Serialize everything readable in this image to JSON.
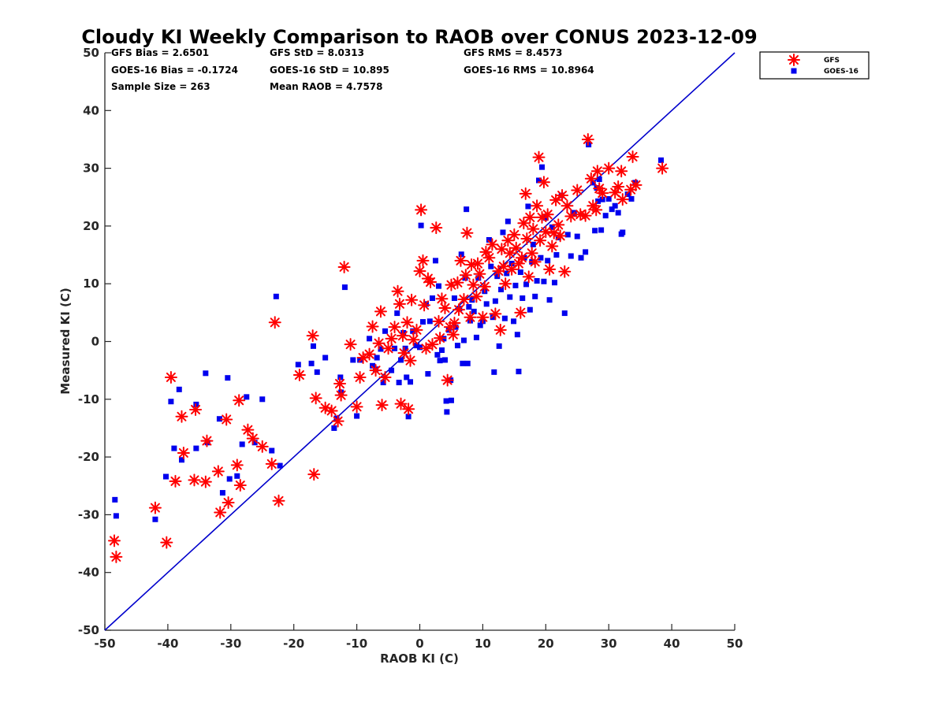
{
  "chart_data": {
    "type": "scatter",
    "title": "Cloudy KI Weekly Comparison to RAOB over CONUS 2023-12-09",
    "xlabel": "RAOB KI (C)",
    "ylabel": "Measured KI (C)",
    "xlim": [
      -50,
      50
    ],
    "ylim": [
      -50,
      50
    ],
    "xticks": [
      -50,
      -40,
      -30,
      -20,
      -10,
      0,
      10,
      20,
      30,
      40,
      50
    ],
    "yticks": [
      -50,
      -40,
      -30,
      -20,
      -10,
      0,
      10,
      20,
      30,
      40,
      50
    ],
    "grid": false,
    "legend_position": "top-right",
    "reference_line": {
      "x": [
        -50,
        50
      ],
      "y": [
        -50,
        50
      ],
      "color": "#0000cc"
    },
    "stats": [
      [
        "GFS Bias = 2.6501",
        "GFS StD = 8.0313",
        "GFS RMS = 8.4573"
      ],
      [
        "GOES-16 Bias = -0.1724",
        "GOES-16 StD = 10.895",
        "GOES-16 RMS = 10.8964"
      ],
      [
        "Sample Size = 263",
        "Mean RAOB = 4.7578",
        ""
      ]
    ],
    "series": [
      {
        "name": "GFS",
        "marker": "asterisk",
        "color": "#ff0000",
        "points": [
          [
            -48.5,
            -34.5
          ],
          [
            -48.2,
            -37.3
          ],
          [
            -42,
            -28.8
          ],
          [
            -40.2,
            -34.8
          ],
          [
            -39.5,
            -6.2
          ],
          [
            -38.8,
            -24.2
          ],
          [
            -37.8,
            -13
          ],
          [
            -37.5,
            -19.3
          ],
          [
            -35.8,
            -24
          ],
          [
            -35.6,
            -11.8
          ],
          [
            -34,
            -24.3
          ],
          [
            -33.8,
            -17.2
          ],
          [
            -32,
            -22.5
          ],
          [
            -31.7,
            -29.6
          ],
          [
            -30.7,
            -13.5
          ],
          [
            -30.4,
            -27.9
          ],
          [
            -29,
            -21.4
          ],
          [
            -28.7,
            -10.2
          ],
          [
            -28.5,
            -24.9
          ],
          [
            -27.3,
            -15.3
          ],
          [
            -26.5,
            -16.8
          ],
          [
            -25,
            -18.2
          ],
          [
            -23.5,
            -21.2
          ],
          [
            -23,
            3.3
          ],
          [
            -22.4,
            -27.6
          ],
          [
            -19.1,
            -5.8
          ],
          [
            -17,
            1
          ],
          [
            -16.8,
            -23
          ],
          [
            -16.5,
            -9.8
          ],
          [
            -15,
            -11.5
          ],
          [
            -14,
            -12
          ],
          [
            -13,
            -13.8
          ],
          [
            -12.7,
            -7.3
          ],
          [
            -12.5,
            -9.3
          ],
          [
            -12,
            12.9
          ],
          [
            -11,
            -0.5
          ],
          [
            -10,
            -11.3
          ],
          [
            -9.5,
            -6.2
          ],
          [
            -9,
            -2.8
          ],
          [
            -8,
            -2.2
          ],
          [
            -7.5,
            2.6
          ],
          [
            -7,
            -5
          ],
          [
            -6.5,
            -0.3
          ],
          [
            -6.2,
            5.2
          ],
          [
            -6,
            -11
          ],
          [
            -5.5,
            -6.2
          ],
          [
            -5,
            -1.2
          ],
          [
            -4.5,
            0.5
          ],
          [
            -4,
            2.5
          ],
          [
            -3.5,
            8.7
          ],
          [
            -3.2,
            6.5
          ],
          [
            -3,
            -10.8
          ],
          [
            -2.7,
            1
          ],
          [
            -2.5,
            -2
          ],
          [
            -2,
            3.3
          ],
          [
            -1.8,
            -11.7
          ],
          [
            -1.5,
            -3.3
          ],
          [
            -1.3,
            7.2
          ],
          [
            -1,
            0.3
          ],
          [
            -0.5,
            2
          ],
          [
            0,
            12.2
          ],
          [
            0.2,
            22.8
          ],
          [
            0.5,
            14
          ],
          [
            0.7,
            6.3
          ],
          [
            1,
            -1.2
          ],
          [
            1.3,
            10.9
          ],
          [
            1.7,
            10.3
          ],
          [
            2,
            -0.5
          ],
          [
            2.6,
            19.7
          ],
          [
            3,
            3.5
          ],
          [
            3.2,
            0.6
          ],
          [
            3.5,
            7.4
          ],
          [
            4,
            5.8
          ],
          [
            4.4,
            -6.7
          ],
          [
            4.8,
            2.5
          ],
          [
            5,
            9.8
          ],
          [
            5.3,
            1.2
          ],
          [
            5.5,
            3.2
          ],
          [
            6,
            10.2
          ],
          [
            6.2,
            5.5
          ],
          [
            6.5,
            14
          ],
          [
            7,
            7.3
          ],
          [
            7.3,
            11.5
          ],
          [
            7.5,
            18.8
          ],
          [
            8,
            4.2
          ],
          [
            8.2,
            13.3
          ],
          [
            8.5,
            9.8
          ],
          [
            9,
            7.8
          ],
          [
            9.2,
            13.5
          ],
          [
            9.5,
            11.7
          ],
          [
            10,
            4.2
          ],
          [
            10.3,
            9.5
          ],
          [
            10.5,
            15.5
          ],
          [
            11,
            14.5
          ],
          [
            11.5,
            16.8
          ],
          [
            12,
            4.8
          ],
          [
            12.5,
            12.2
          ],
          [
            12.8,
            2
          ],
          [
            13,
            16
          ],
          [
            13.3,
            13
          ],
          [
            13.6,
            10
          ],
          [
            14,
            17.5
          ],
          [
            14.3,
            15.3
          ],
          [
            14.6,
            12.5
          ],
          [
            15,
            18.5
          ],
          [
            15.3,
            16.2
          ],
          [
            15.7,
            13.5
          ],
          [
            16,
            5
          ],
          [
            16.2,
            14.5
          ],
          [
            16.5,
            20.5
          ],
          [
            16.8,
            25.6
          ],
          [
            17,
            17.8
          ],
          [
            17.3,
            11.2
          ],
          [
            17.5,
            21.5
          ],
          [
            17.8,
            15.3
          ],
          [
            18,
            19.5
          ],
          [
            18.3,
            13.8
          ],
          [
            18.6,
            23.5
          ],
          [
            18.9,
            31.9
          ],
          [
            19.1,
            17.5
          ],
          [
            19.4,
            21.5
          ],
          [
            19.7,
            27.6
          ],
          [
            20,
            19
          ],
          [
            20.3,
            22
          ],
          [
            20.6,
            12.5
          ],
          [
            21,
            16.5
          ],
          [
            21.3,
            18.8
          ],
          [
            21.6,
            24.5
          ],
          [
            22,
            20.2
          ],
          [
            22.3,
            18.3
          ],
          [
            22.6,
            25.3
          ],
          [
            23,
            12.1
          ],
          [
            23.4,
            23.5
          ],
          [
            24,
            21.7
          ],
          [
            25,
            26.2
          ],
          [
            25.5,
            22
          ],
          [
            26.3,
            21.8
          ],
          [
            26.7,
            35
          ],
          [
            27.2,
            28.2
          ],
          [
            27.5,
            23.5
          ],
          [
            28,
            22.8
          ],
          [
            28.2,
            29.5
          ],
          [
            28.5,
            26.5
          ],
          [
            29,
            25.7
          ],
          [
            30,
            30
          ],
          [
            31,
            25.8
          ],
          [
            31.5,
            26.8
          ],
          [
            32,
            29.5
          ],
          [
            32.2,
            24.6
          ],
          [
            33.5,
            26.3
          ],
          [
            33.8,
            32
          ],
          [
            34.3,
            27.1
          ],
          [
            38.5,
            30
          ]
        ]
      },
      {
        "name": "GOES-16",
        "marker": "square",
        "color": "#0000ee",
        "points": [
          [
            -48.4,
            -27.4
          ],
          [
            -48.2,
            -30.2
          ],
          [
            -42,
            -30.8
          ],
          [
            -40.3,
            -23.4
          ],
          [
            -39.5,
            -10.4
          ],
          [
            -39,
            -18.5
          ],
          [
            -38.2,
            -8.3
          ],
          [
            -37.8,
            -20.5
          ],
          [
            -35.5,
            -18.5
          ],
          [
            -35.5,
            -10.9
          ],
          [
            -34,
            -5.5
          ],
          [
            -33.7,
            -17.5
          ],
          [
            -31.8,
            -13.4
          ],
          [
            -31.3,
            -26.2
          ],
          [
            -30.5,
            -6.3
          ],
          [
            -30.2,
            -23.8
          ],
          [
            -29,
            -23.3
          ],
          [
            -28.2,
            -17.8
          ],
          [
            -27.5,
            -9.6
          ],
          [
            -26.2,
            -17.5
          ],
          [
            -25,
            -10
          ],
          [
            -23.5,
            -18.9
          ],
          [
            -22.8,
            7.8
          ],
          [
            -22.2,
            -21.5
          ],
          [
            -19.3,
            -4
          ],
          [
            -17.2,
            -3.8
          ],
          [
            -16.9,
            -0.8
          ],
          [
            -16.3,
            -5.3
          ],
          [
            -15,
            -2.8
          ],
          [
            -13.6,
            -15
          ],
          [
            -13.2,
            -13.3
          ],
          [
            -12.6,
            -6.2
          ],
          [
            -12.5,
            -8.8
          ],
          [
            -11.9,
            9.4
          ],
          [
            -10.6,
            -3.2
          ],
          [
            -10,
            -12.9
          ],
          [
            -9.5,
            -3.2
          ],
          [
            -8,
            0.5
          ],
          [
            -7.5,
            -4.2
          ],
          [
            -7,
            -4.8
          ],
          [
            -6.8,
            -2.8
          ],
          [
            -6.2,
            -1.3
          ],
          [
            -5.8,
            -7.1
          ],
          [
            -5.5,
            1.8
          ],
          [
            -4.5,
            -5
          ],
          [
            -4,
            -1.2
          ],
          [
            -3.6,
            4.9
          ],
          [
            -3.3,
            -7.1
          ],
          [
            -3,
            -3.2
          ],
          [
            -2.6,
            1.5
          ],
          [
            -2.3,
            -1.2
          ],
          [
            -2.1,
            -6.2
          ],
          [
            -1.8,
            -13
          ],
          [
            -1.5,
            -7
          ],
          [
            -1.1,
            1.8
          ],
          [
            -0.5,
            -0.7
          ],
          [
            0,
            -1
          ],
          [
            0.2,
            20.1
          ],
          [
            0.5,
            3.4
          ],
          [
            1,
            6.5
          ],
          [
            1.3,
            -5.6
          ],
          [
            1.6,
            3.5
          ],
          [
            2,
            7.5
          ],
          [
            2.5,
            14
          ],
          [
            2.8,
            -2.3
          ],
          [
            3,
            9.6
          ],
          [
            3.2,
            -3.3
          ],
          [
            3.5,
            -1.5
          ],
          [
            3.8,
            0.5
          ],
          [
            4,
            -3.2
          ],
          [
            4.2,
            -10.3
          ],
          [
            4.3,
            -12.2
          ],
          [
            4.6,
            2
          ],
          [
            4.9,
            -6.7
          ],
          [
            5,
            -10.2
          ],
          [
            5.5,
            7.5
          ],
          [
            5.7,
            2.5
          ],
          [
            6,
            -0.7
          ],
          [
            6.3,
            5.7
          ],
          [
            6.6,
            15.1
          ],
          [
            6.8,
            -3.8
          ],
          [
            7,
            0.2
          ],
          [
            7.2,
            11
          ],
          [
            7.4,
            22.9
          ],
          [
            7.6,
            -3.8
          ],
          [
            7.8,
            6
          ],
          [
            8,
            3.6
          ],
          [
            8.3,
            7.2
          ],
          [
            8.6,
            5.2
          ],
          [
            9,
            0.7
          ],
          [
            9.3,
            11
          ],
          [
            9.6,
            2.8
          ],
          [
            10,
            3.5
          ],
          [
            10.3,
            8.7
          ],
          [
            10.6,
            6.5
          ],
          [
            11,
            17.6
          ],
          [
            11.3,
            13
          ],
          [
            11.6,
            4.2
          ],
          [
            11.8,
            -5.3
          ],
          [
            12,
            7
          ],
          [
            12.3,
            11.3
          ],
          [
            12.6,
            -0.8
          ],
          [
            12.9,
            9
          ],
          [
            13.2,
            18.9
          ],
          [
            13.5,
            4
          ],
          [
            13.8,
            11.8
          ],
          [
            14,
            20.8
          ],
          [
            14.3,
            7.7
          ],
          [
            14.6,
            13.5
          ],
          [
            14.9,
            3.5
          ],
          [
            15.2,
            9.7
          ],
          [
            15.5,
            1.2
          ],
          [
            15.7,
            -5.2
          ],
          [
            16,
            12
          ],
          [
            16.3,
            7.5
          ],
          [
            16.6,
            14.5
          ],
          [
            16.9,
            9.9
          ],
          [
            17.2,
            23.4
          ],
          [
            17.5,
            5.5
          ],
          [
            17.8,
            13.8
          ],
          [
            18,
            16.8
          ],
          [
            18.3,
            7.8
          ],
          [
            18.6,
            10.5
          ],
          [
            18.9,
            27.9
          ],
          [
            19.2,
            14.5
          ],
          [
            19.4,
            30.2
          ],
          [
            19.7,
            10.4
          ],
          [
            20,
            21.4
          ],
          [
            20.3,
            14
          ],
          [
            20.6,
            7.2
          ],
          [
            21,
            19.8
          ],
          [
            21.4,
            10.2
          ],
          [
            21.7,
            15
          ],
          [
            22,
            18
          ],
          [
            22.5,
            25.3
          ],
          [
            23,
            4.9
          ],
          [
            23.5,
            18.5
          ],
          [
            24,
            14.8
          ],
          [
            24.5,
            22.3
          ],
          [
            25,
            18.2
          ],
          [
            25.6,
            14.5
          ],
          [
            26.3,
            15.5
          ],
          [
            26.8,
            34.1
          ],
          [
            27.5,
            27.5
          ],
          [
            27.8,
            19.2
          ],
          [
            28.1,
            26.6
          ],
          [
            28.3,
            24.3
          ],
          [
            28.5,
            28.1
          ],
          [
            28.8,
            19.3
          ],
          [
            29,
            24.6
          ],
          [
            29.5,
            21.8
          ],
          [
            30,
            24.7
          ],
          [
            30.5,
            22.9
          ],
          [
            31,
            23.5
          ],
          [
            31.5,
            22.3
          ],
          [
            32,
            18.6
          ],
          [
            32.2,
            18.9
          ],
          [
            33,
            25.5
          ],
          [
            33.6,
            24.7
          ],
          [
            34.2,
            27.5
          ],
          [
            38.3,
            31.4
          ]
        ]
      }
    ]
  }
}
